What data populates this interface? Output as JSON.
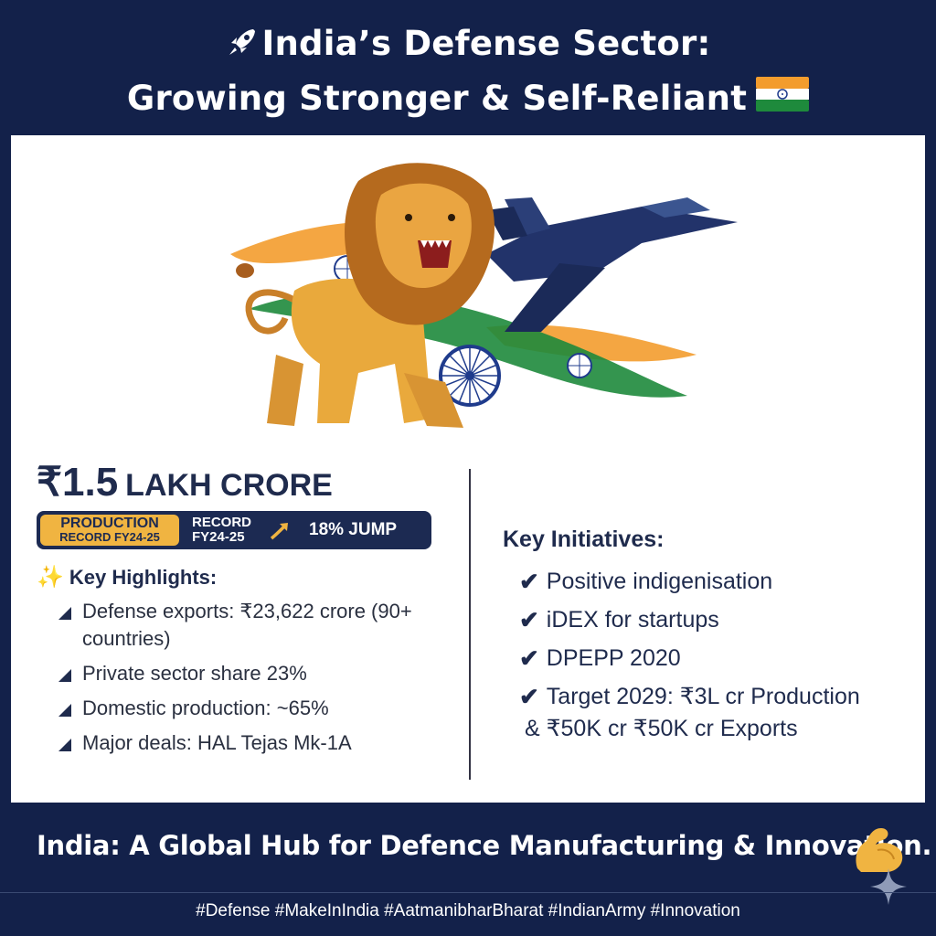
{
  "header": {
    "title_line1": "India’s Defense Sector:",
    "title_line2": "Growing Stronger & Self-Reliant"
  },
  "stat": {
    "figure": "₹1.5",
    "unit": "LAKH CRORE",
    "badge_production": "PRODUCTION",
    "badge_production_sub": "RECORD FY24-25",
    "badge_record": "RECORD",
    "badge_record_sub": "FY24-25",
    "badge_jump": "18% JUMP"
  },
  "highlights": {
    "title": "Key Highlights:",
    "items": [
      "Defense exports: ₹23,622 crore (90+ countries)",
      "Private sector share 23%",
      "Domestic production: ~65%",
      "Major deals: HAL Tejas Mk-1A"
    ]
  },
  "initiatives": {
    "title": "Key Initiatives:",
    "items": [
      "Positive indigenisation",
      "iDEX for startups",
      "DPEPP 2020",
      "Target 2029: ₹3L cr Production",
      "& ₹50K cr ₹50K cr Exports"
    ]
  },
  "footer": {
    "tagline": "India: A Global Hub for Defence Manufacturing & Innovation.",
    "hashtags": "#Defense  #MakeInIndia #AatmanibharBharat #IndianArmy #Innovation"
  },
  "colors": {
    "navy": "#13214a",
    "saffron": "#f39c2d",
    "green": "#1e8a3c",
    "gold": "#f0b441",
    "chakra_blue": "#1f3b8c"
  },
  "icons": [
    "rocket-icon",
    "india-flag-icon",
    "lion-illustration",
    "fighter-jet-illustration",
    "ashoka-chakra-icon",
    "sparkle-icon",
    "bullet-icon",
    "check-icon",
    "up-arrow-icon",
    "flexed-biceps-icon",
    "star-icon"
  ]
}
